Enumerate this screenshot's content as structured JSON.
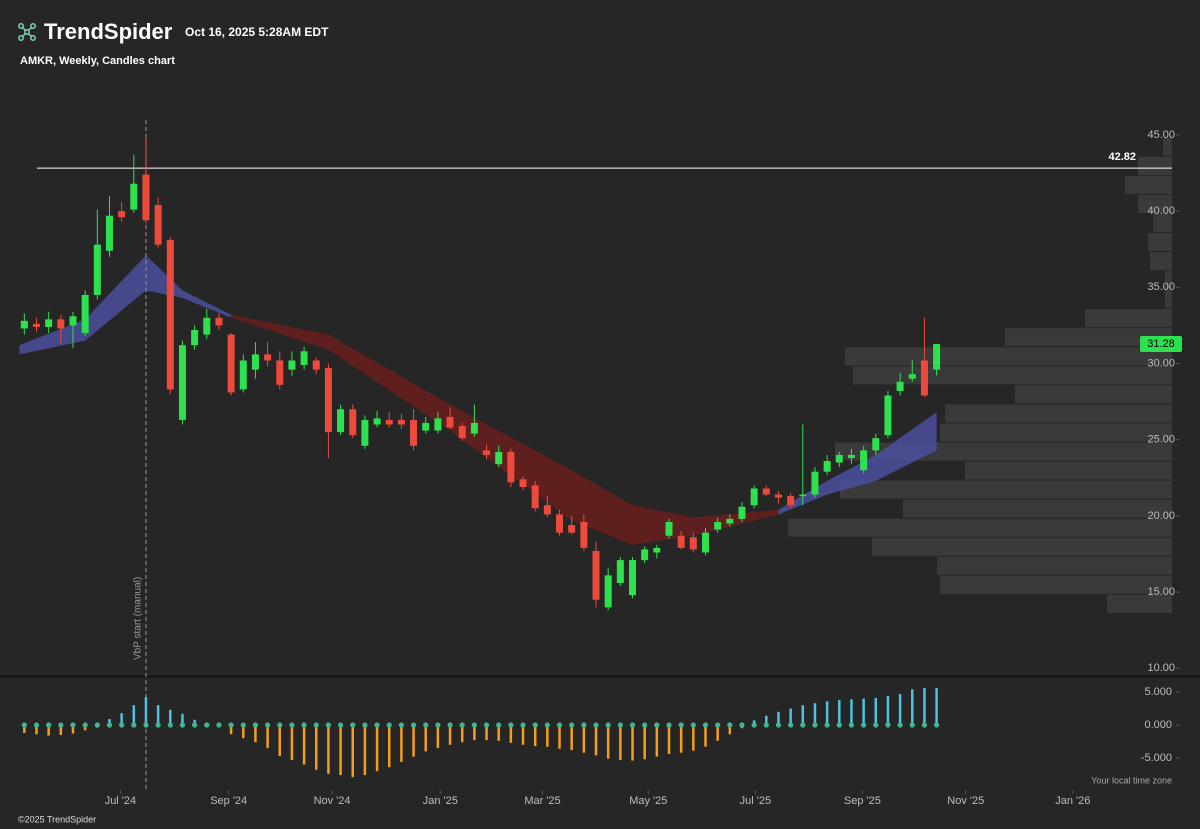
{
  "header": {
    "brand": "TrendSpider",
    "timestamp": "Oct 16, 2025 5:28AM EDT",
    "subtitle": "AMKR, Weekly, Candles chart"
  },
  "chart_data": [
    {
      "type": "candlestick",
      "open": [
        32.3,
        32.6,
        32.4,
        32.9,
        32.5,
        32.0,
        34.5,
        37.4,
        40.0,
        40.1,
        42.4,
        40.4,
        38.1,
        26.3,
        31.2,
        31.9,
        33.0,
        31.9,
        28.3,
        29.6,
        30.6,
        30.2,
        29.6,
        29.9,
        30.2,
        29.7,
        25.5,
        27.0,
        24.6,
        26.0,
        26.3,
        26.3,
        26.3,
        25.6,
        25.6,
        26.5,
        25.9,
        25.4,
        24.3,
        23.4,
        24.2,
        22.4,
        22.0,
        20.7,
        20.1,
        19.4,
        19.6,
        17.7,
        14.0,
        15.6,
        14.8,
        17.1,
        17.6,
        18.7,
        18.7,
        18.6,
        17.6,
        19.1,
        19.5,
        19.8,
        20.7,
        21.8,
        21.4,
        21.3,
        21.3,
        21.4,
        22.9,
        23.5,
        23.8,
        23.0,
        24.3,
        25.3,
        28.2,
        29.0,
        30.2,
        29.6
      ],
      "high": [
        33.3,
        33.0,
        33.4,
        33.2,
        33.4,
        34.8,
        40.1,
        41.0,
        40.6,
        43.7,
        44.8,
        40.9,
        38.3,
        31.5,
        32.5,
        33.6,
        33.3,
        32.0,
        30.6,
        31.4,
        31.4,
        30.8,
        30.8,
        31.1,
        30.4,
        30.0,
        27.3,
        27.3,
        26.6,
        26.9,
        26.8,
        26.7,
        27.0,
        26.5,
        26.8,
        27.1,
        26.1,
        27.3,
        24.7,
        24.6,
        24.4,
        22.6,
        22.3,
        21.3,
        20.4,
        20.0,
        20.1,
        18.3,
        16.6,
        17.3,
        17.3,
        18.0,
        18.1,
        19.8,
        19.0,
        18.9,
        19.2,
        19.9,
        20.1,
        20.9,
        22.0,
        22.0,
        21.6,
        21.5,
        26.0,
        23.2,
        24.0,
        24.2,
        24.4,
        24.6,
        25.4,
        28.2,
        29.4,
        30.2,
        33.0,
        31.3
      ],
      "low": [
        31.9,
        32.1,
        32.0,
        31.3,
        31.0,
        31.8,
        34.2,
        37.0,
        39.3,
        39.9,
        39.2,
        37.6,
        28.0,
        26.0,
        30.9,
        31.6,
        32.2,
        27.9,
        28.1,
        29.0,
        29.8,
        28.3,
        29.2,
        29.6,
        29.3,
        23.8,
        25.3,
        25.1,
        24.4,
        25.8,
        25.8,
        25.7,
        24.3,
        25.4,
        25.4,
        25.7,
        24.9,
        25.2,
        23.7,
        23.2,
        21.9,
        21.7,
        20.3,
        19.9,
        18.7,
        18.8,
        17.7,
        14.0,
        13.8,
        15.4,
        14.6,
        16.9,
        17.2,
        18.5,
        17.8,
        17.6,
        17.4,
        18.9,
        19.3,
        19.6,
        20.5,
        21.3,
        20.8,
        20.5,
        20.7,
        21.2,
        22.7,
        23.2,
        23.4,
        22.8,
        24.0,
        25.1,
        27.9,
        28.8,
        27.8,
        29.2
      ],
      "close": [
        32.8,
        32.4,
        32.9,
        32.3,
        33.1,
        34.5,
        37.8,
        39.7,
        39.6,
        41.8,
        39.4,
        37.8,
        28.3,
        31.2,
        32.2,
        33.0,
        32.5,
        28.1,
        30.2,
        30.6,
        30.2,
        28.6,
        30.2,
        30.8,
        29.6,
        25.5,
        27.0,
        25.3,
        26.3,
        26.4,
        26.0,
        26.0,
        24.6,
        26.1,
        26.4,
        25.8,
        25.1,
        26.1,
        24.0,
        24.2,
        22.2,
        21.9,
        20.5,
        20.1,
        18.9,
        18.9,
        17.9,
        14.5,
        16.1,
        17.1,
        17.1,
        17.8,
        17.9,
        19.6,
        17.9,
        17.8,
        18.9,
        19.6,
        19.8,
        20.6,
        21.8,
        21.4,
        21.2,
        20.7,
        21.4,
        22.9,
        23.6,
        24.0,
        24.0,
        24.3,
        25.1,
        27.9,
        28.8,
        29.3,
        27.9,
        31.28
      ],
      "up_color": "#2ee24f",
      "down_color": "#ee4a3c",
      "xlim": [
        -2,
        94.6
      ],
      "ylim": [
        9.56,
        45.98
      ],
      "yticks": [
        {
          "value": 10,
          "label": "10.00"
        },
        {
          "value": 15,
          "label": "15.00"
        },
        {
          "value": 20,
          "label": "20.00"
        },
        {
          "value": 25,
          "label": "25.00"
        },
        {
          "value": 30,
          "label": "30.00"
        },
        {
          "value": 35,
          "label": "35.00"
        },
        {
          "value": 40,
          "label": "40.00"
        },
        {
          "value": 45,
          "label": "45.00"
        }
      ],
      "hline": 42.82,
      "last_price": 31.28,
      "marker": {
        "x": 10,
        "label": "VbP start (manual)"
      },
      "ribbons": [
        {
          "color": "#4b4f9c",
          "x": [
            -0.4,
            5,
            10,
            13,
            17
          ],
          "upper": [
            31.2,
            32.9,
            37.1,
            34.8,
            33.2
          ],
          "lower": [
            30.6,
            31.5,
            34.8,
            34.3,
            33.0
          ]
        },
        {
          "color": "#6a1e1e",
          "x": [
            17,
            25,
            35,
            45,
            50,
            55,
            62
          ],
          "upper": [
            33.2,
            31.9,
            27.3,
            23.0,
            20.7,
            19.9,
            20.4
          ],
          "lower": [
            33.0,
            30.9,
            25.6,
            19.7,
            18.1,
            18.7,
            20.1
          ]
        },
        {
          "color": "#4b4f9c",
          "x": [
            62,
            66,
            70,
            75
          ],
          "upper": [
            20.4,
            22.3,
            24.0,
            26.8
          ],
          "lower": [
            20.1,
            21.4,
            22.3,
            24.3
          ]
        }
      ],
      "volume_profile": {
        "color": "#3a3a3a",
        "bins": [
          13.6,
          14.85,
          16.1,
          17.35,
          18.6,
          19.85,
          21.1,
          22.35,
          23.6,
          24.85,
          26.1,
          27.35,
          28.6,
          29.85,
          31.1,
          32.35,
          33.6,
          34.85,
          36.1,
          37.35,
          38.6,
          39.85,
          41.1,
          42.35,
          43.6,
          44.85
        ],
        "values": [
          65,
          232,
          235,
          300,
          384,
          269,
          332,
          207,
          337,
          232,
          227,
          157,
          319,
          327,
          167,
          87,
          7,
          7,
          22,
          24,
          19,
          34,
          47,
          34,
          9
        ]
      }
    },
    {
      "type": "histogram",
      "values": [
        -1.2,
        -1.4,
        -1.6,
        -1.5,
        -1.3,
        -0.8,
        -0.4,
        0.9,
        1.8,
        3.0,
        4.2,
        3.0,
        2.3,
        1.7,
        0.8,
        0.3,
        -0.2,
        -1.4,
        -2.0,
        -2.6,
        -3.5,
        -4.7,
        -5.3,
        -6.0,
        -6.8,
        -7.4,
        -7.6,
        -7.9,
        -7.6,
        -7.0,
        -6.4,
        -5.6,
        -4.8,
        -4.0,
        -3.5,
        -3.0,
        -2.6,
        -2.3,
        -2.3,
        -2.4,
        -2.7,
        -3.0,
        -3.2,
        -3.3,
        -3.6,
        -3.8,
        -4.2,
        -4.6,
        -5.1,
        -5.3,
        -5.4,
        -5.2,
        -4.8,
        -4.4,
        -4.2,
        -3.9,
        -3.3,
        -2.4,
        -1.4,
        -0.5,
        0.7,
        1.4,
        2.0,
        2.5,
        3.0,
        3.3,
        3.6,
        3.8,
        3.9,
        4.0,
        4.1,
        4.4,
        4.7,
        5.4,
        5.6,
        5.6
      ],
      "positive_color": "#4ec3e0",
      "negative_color": "#f59e1b",
      "dot_color": "#3fb88f",
      "xlim": [
        -2,
        94.6
      ],
      "ylim": [
        -9.85,
        7.12
      ],
      "yticks": [
        {
          "value": -5,
          "label": "-5.000"
        },
        {
          "value": 0,
          "label": "0.000"
        },
        {
          "value": 5,
          "label": "5.000"
        }
      ],
      "xticks": [
        {
          "value": 7.9,
          "label": "Jul '24"
        },
        {
          "value": 16.8,
          "label": "Sep '24"
        },
        {
          "value": 25.3,
          "label": "Nov '24"
        },
        {
          "value": 34.2,
          "label": "Jan '25"
        },
        {
          "value": 42.6,
          "label": "Mar '25"
        },
        {
          "value": 51.3,
          "label": "May '25"
        },
        {
          "value": 60.1,
          "label": "Jul '25"
        },
        {
          "value": 68.9,
          "label": "Sep '25"
        },
        {
          "value": 77.4,
          "label": "Nov '25"
        },
        {
          "value": 86.2,
          "label": "Jan '26"
        }
      ]
    }
  ],
  "footer": {
    "timezone": "Your local time zone",
    "copyright": "©2025 TrendSpider"
  }
}
